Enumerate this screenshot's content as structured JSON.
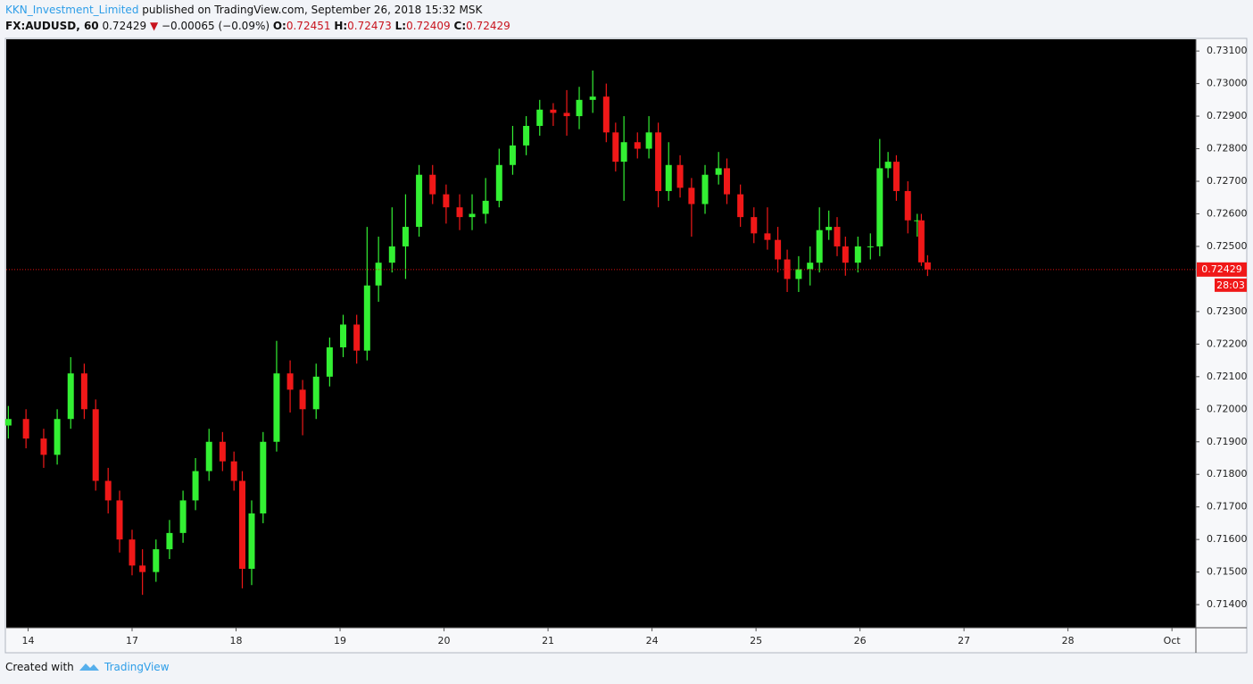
{
  "header": {
    "author": "KKN_Investment_Limited",
    "published": "published on TradingView.com, September 26, 2018 15:32 MSK",
    "symbol": "FX:AUDUSD, 60",
    "last": "0.72429",
    "change": "−0.00065 (−0.09%)",
    "open_label": "O:",
    "open": "0.72451",
    "high_label": "H:",
    "high": "0.72473",
    "low_label": "L:",
    "low": "0.72409",
    "close_label": "C:",
    "close": "0.72429"
  },
  "footer": {
    "created": "Created with",
    "brand": "TradingView"
  },
  "chart_data": {
    "type": "candlestick",
    "x": [
      -0.19,
      -0.02,
      0.15,
      0.28,
      0.41,
      0.54,
      0.65,
      0.77,
      0.88,
      1.0,
      1.1,
      1.23,
      1.36,
      1.49,
      1.61,
      1.74,
      1.87,
      1.98,
      2.06,
      2.15,
      2.26,
      2.39,
      2.52,
      2.64,
      2.77,
      2.9,
      3.03,
      3.16,
      3.26,
      3.37,
      3.5,
      3.63,
      3.76,
      3.89,
      4.02,
      4.15,
      4.27,
      4.4,
      4.53,
      4.66,
      4.79,
      4.92,
      5.05,
      5.18,
      5.3,
      5.43,
      5.56,
      5.65,
      5.73,
      5.86,
      5.97,
      6.06,
      6.16,
      6.27,
      6.38,
      6.51,
      6.64,
      6.72,
      6.85,
      6.98,
      7.11,
      7.21,
      7.3,
      7.41,
      7.52,
      7.61,
      7.7,
      7.78,
      7.86,
      7.98,
      8.1,
      8.19,
      8.27,
      8.35,
      8.46,
      8.55,
      8.59,
      8.65
    ],
    "open": [
      0.7195,
      0.7197,
      0.7191,
      0.7186,
      0.7197,
      0.7211,
      0.72,
      0.7178,
      0.7172,
      0.716,
      0.7152,
      0.715,
      0.7157,
      0.7162,
      0.7172,
      0.7181,
      0.719,
      0.7184,
      0.7178,
      0.7151,
      0.7168,
      0.719,
      0.7211,
      0.7206,
      0.72,
      0.721,
      0.7219,
      0.7226,
      0.7218,
      0.7238,
      0.7245,
      0.725,
      0.7256,
      0.7272,
      0.7266,
      0.7262,
      0.7259,
      0.726,
      0.7264,
      0.7275,
      0.7281,
      0.7287,
      0.7292,
      0.7291,
      0.729,
      0.7295,
      0.7296,
      0.7285,
      0.7276,
      0.7282,
      0.728,
      0.7285,
      0.7267,
      0.7275,
      0.7268,
      0.7263,
      0.7272,
      0.7274,
      0.7266,
      0.7259,
      0.7254,
      0.7252,
      0.7246,
      0.724,
      0.7243,
      0.7245,
      0.7255,
      0.7256,
      0.725,
      0.7245,
      0.725,
      0.725,
      0.7274,
      0.7276,
      0.7267,
      0.7258,
      0.7258,
      0.72451
    ],
    "high": [
      0.7201,
      0.72,
      0.7194,
      0.72,
      0.7216,
      0.7214,
      0.7203,
      0.7182,
      0.7175,
      0.7163,
      0.7157,
      0.716,
      0.7166,
      0.7175,
      0.7185,
      0.7194,
      0.7193,
      0.7187,
      0.7181,
      0.7172,
      0.7193,
      0.7221,
      0.7215,
      0.7209,
      0.7214,
      0.7222,
      0.7229,
      0.7229,
      0.7256,
      0.7253,
      0.7262,
      0.7266,
      0.7275,
      0.7275,
      0.7269,
      0.7266,
      0.7266,
      0.7271,
      0.728,
      0.7287,
      0.729,
      0.7295,
      0.7294,
      0.7298,
      0.7299,
      0.7304,
      0.73,
      0.7288,
      0.729,
      0.7285,
      0.729,
      0.7288,
      0.7282,
      0.7278,
      0.7271,
      0.7275,
      0.7279,
      0.7277,
      0.7269,
      0.7262,
      0.7262,
      0.7256,
      0.7249,
      0.7247,
      0.725,
      0.7262,
      0.7261,
      0.7259,
      0.7253,
      0.7253,
      0.7254,
      0.7283,
      0.7279,
      0.7278,
      0.727,
      0.726,
      0.726,
      0.72473
    ],
    "low": [
      0.7191,
      0.7188,
      0.7182,
      0.7183,
      0.7194,
      0.7197,
      0.7175,
      0.7168,
      0.7156,
      0.7149,
      0.7143,
      0.7147,
      0.7154,
      0.7159,
      0.7169,
      0.7178,
      0.7181,
      0.7175,
      0.7145,
      0.7146,
      0.7165,
      0.7187,
      0.7199,
      0.7192,
      0.7197,
      0.7207,
      0.7216,
      0.7214,
      0.7215,
      0.7233,
      0.7242,
      0.724,
      0.7253,
      0.7263,
      0.7257,
      0.7255,
      0.7255,
      0.7257,
      0.7262,
      0.7272,
      0.7278,
      0.7284,
      0.7287,
      0.7284,
      0.7286,
      0.7291,
      0.7282,
      0.7273,
      0.7264,
      0.7277,
      0.7277,
      0.7262,
      0.7264,
      0.7265,
      0.7253,
      0.726,
      0.7269,
      0.7263,
      0.7256,
      0.7251,
      0.7249,
      0.7242,
      0.7236,
      0.7236,
      0.7238,
      0.7242,
      0.7252,
      0.7247,
      0.7241,
      0.7242,
      0.7246,
      0.7247,
      0.7271,
      0.7264,
      0.7254,
      0.7253,
      0.7244,
      0.72409
    ],
    "close": [
      0.7197,
      0.7191,
      0.7186,
      0.7197,
      0.7211,
      0.72,
      0.7178,
      0.7172,
      0.716,
      0.7152,
      0.715,
      0.7157,
      0.7162,
      0.7172,
      0.7181,
      0.719,
      0.7184,
      0.7178,
      0.7151,
      0.7168,
      0.719,
      0.7211,
      0.7206,
      0.72,
      0.721,
      0.7219,
      0.7226,
      0.7218,
      0.7238,
      0.7245,
      0.725,
      0.7256,
      0.7272,
      0.7266,
      0.7262,
      0.7259,
      0.726,
      0.7264,
      0.7275,
      0.7281,
      0.7287,
      0.7292,
      0.7291,
      0.729,
      0.7295,
      0.7296,
      0.7285,
      0.7276,
      0.7282,
      0.728,
      0.7285,
      0.7267,
      0.7275,
      0.7268,
      0.7263,
      0.7272,
      0.7274,
      0.7266,
      0.7259,
      0.7254,
      0.7252,
      0.7246,
      0.724,
      0.7243,
      0.7245,
      0.7255,
      0.7256,
      0.725,
      0.7245,
      0.725,
      0.725,
      0.7274,
      0.7276,
      0.7267,
      0.7258,
      0.7258,
      0.72451,
      0.72429
    ],
    "up_color": "#33f033",
    "down_color": "#f01818",
    "xlim": [
      -0.21,
      11.23
    ],
    "xticks": [
      {
        "value": 0,
        "label": "14"
      },
      {
        "value": 1,
        "label": "17"
      },
      {
        "value": 2,
        "label": "18"
      },
      {
        "value": 3,
        "label": "19"
      },
      {
        "value": 4,
        "label": "20"
      },
      {
        "value": 5,
        "label": "21"
      },
      {
        "value": 6,
        "label": "24"
      },
      {
        "value": 7,
        "label": "25"
      },
      {
        "value": 8,
        "label": "26"
      },
      {
        "value": 9,
        "label": "27"
      },
      {
        "value": 10,
        "label": "28"
      },
      {
        "value": 11,
        "label": "Oct"
      }
    ],
    "ylim": [
      0.71329,
      0.73136
    ],
    "yticks": [
      {
        "value": 0.714,
        "label": "0.71400"
      },
      {
        "value": 0.715,
        "label": "0.71500"
      },
      {
        "value": 0.716,
        "label": "0.71600"
      },
      {
        "value": 0.717,
        "label": "0.71700"
      },
      {
        "value": 0.718,
        "label": "0.71800"
      },
      {
        "value": 0.719,
        "label": "0.71900"
      },
      {
        "value": 0.72,
        "label": "0.72000"
      },
      {
        "value": 0.721,
        "label": "0.72100"
      },
      {
        "value": 0.722,
        "label": "0.72200"
      },
      {
        "value": 0.723,
        "label": "0.72300"
      },
      {
        "value": 0.725,
        "label": "0.72500"
      },
      {
        "value": 0.726,
        "label": "0.72600"
      },
      {
        "value": 0.727,
        "label": "0.72700"
      },
      {
        "value": 0.728,
        "label": "0.72800"
      },
      {
        "value": 0.729,
        "label": "0.72900"
      },
      {
        "value": 0.73,
        "label": "0.73000"
      },
      {
        "value": 0.731,
        "label": "0.73100"
      }
    ],
    "last_price": {
      "value": 0.72429,
      "label": "0.72429"
    },
    "countdown": "28:03"
  }
}
